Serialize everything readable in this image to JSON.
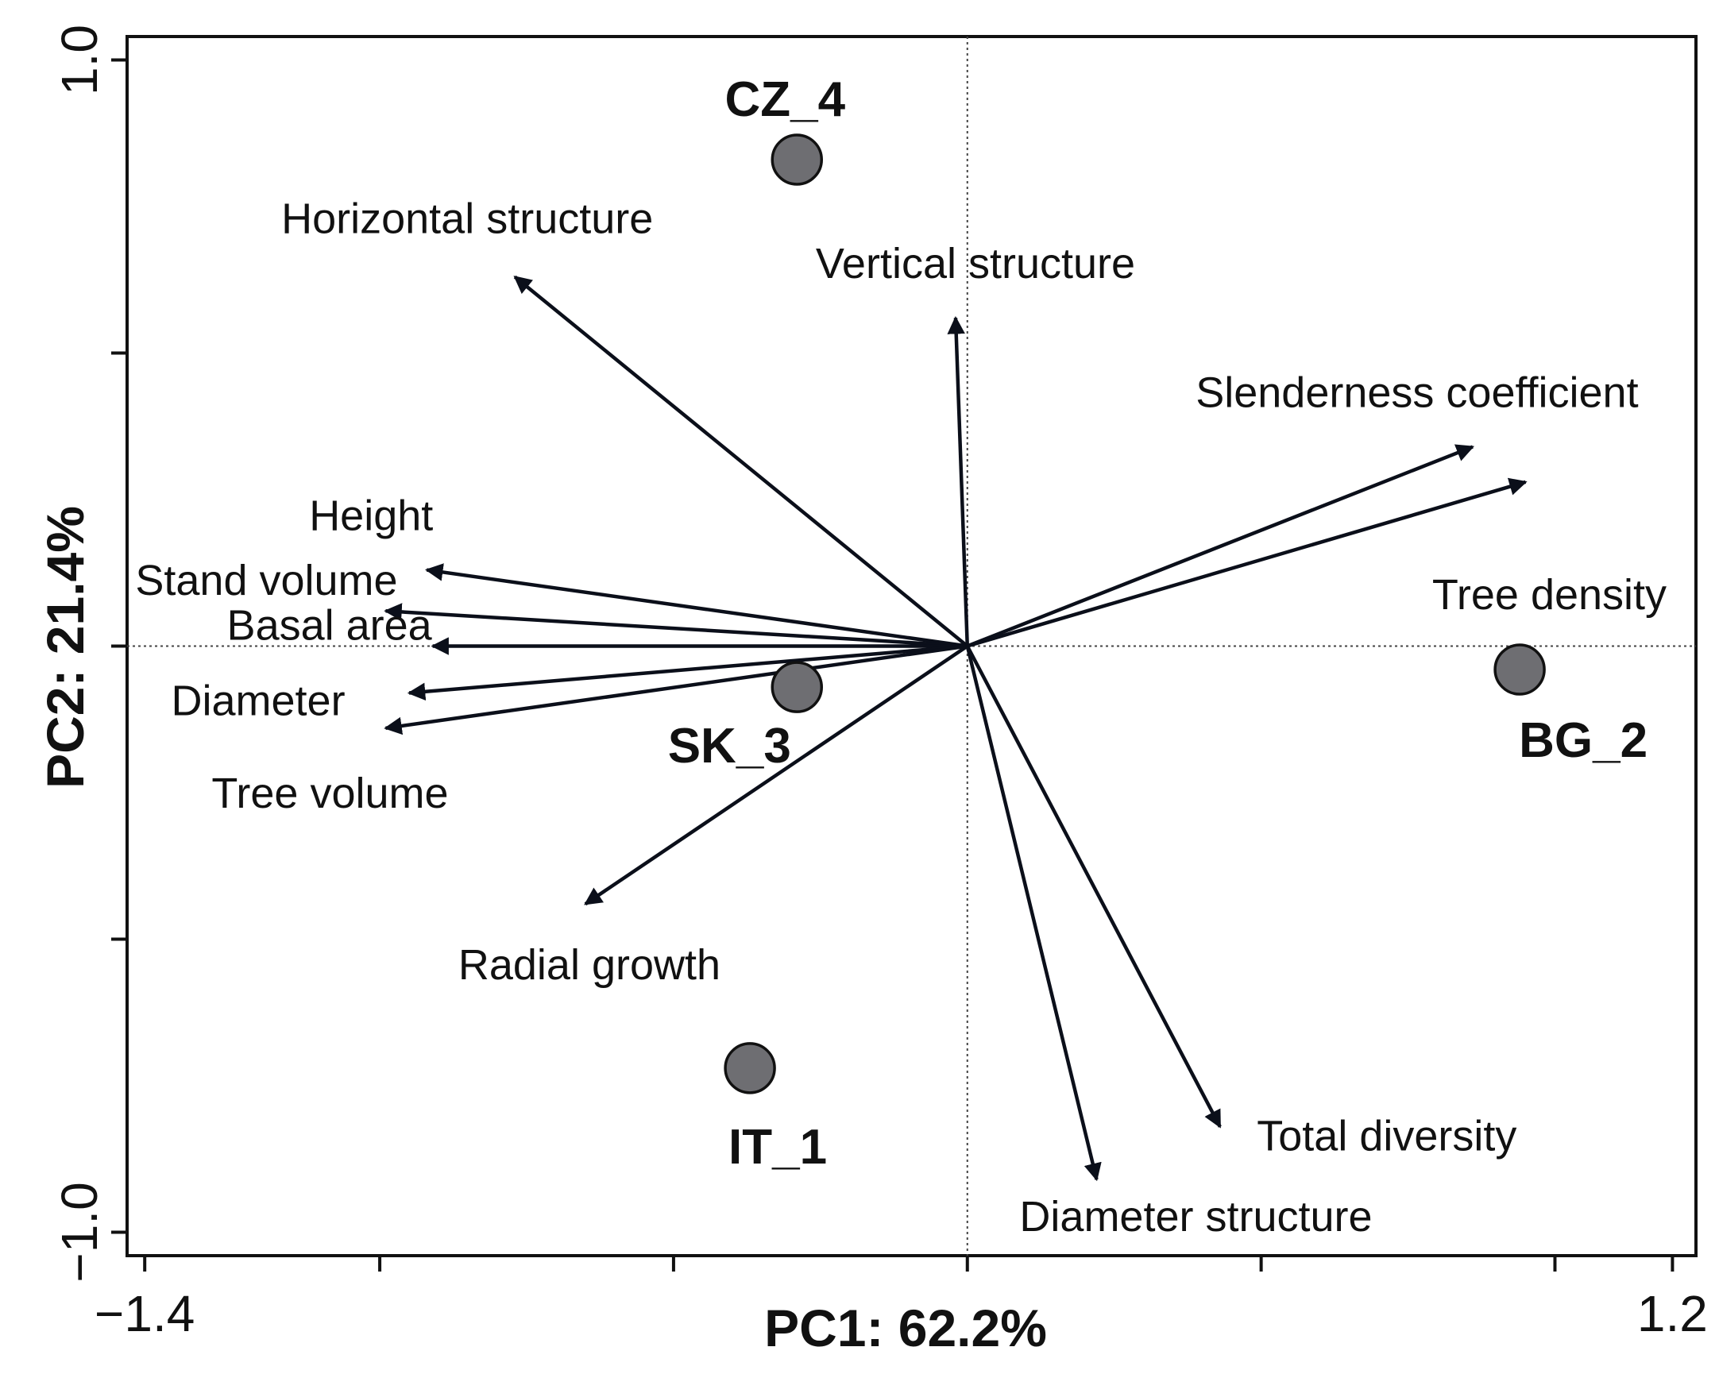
{
  "chart_data": {
    "type": "scatter",
    "subtype": "pca-biplot",
    "xlabel": "PC1: 62.2%",
    "ylabel": "PC2: 21.4%",
    "xlim": [
      -1.43,
      1.24
    ],
    "ylim": [
      -1.04,
      1.04
    ],
    "x_ticks": [
      -1.4,
      -1.0,
      -0.5,
      0.0,
      0.5,
      1.0,
      1.2
    ],
    "x_tick_labels": [
      "−1.4",
      "",
      "",
      "",
      "",
      "",
      "1.2"
    ],
    "y_ticks": [
      -1.0,
      -0.5,
      0.0,
      0.5,
      1.0
    ],
    "y_tick_labels": [
      "−1.0",
      "",
      "",
      "",
      "1.0"
    ],
    "reference_lines": {
      "x": 0,
      "y": 0,
      "style": "dotted"
    },
    "sites": [
      {
        "name": "CZ_4",
        "x": -0.29,
        "y": 0.83
      },
      {
        "name": "SK_3",
        "x": -0.29,
        "y": -0.07
      },
      {
        "name": "IT_1",
        "x": -0.37,
        "y": -0.72
      },
      {
        "name": "BG_2",
        "x": 0.94,
        "y": -0.04
      }
    ],
    "variables": [
      {
        "name": "Horizontal structure",
        "x": -0.77,
        "y": 0.63
      },
      {
        "name": "Vertical structure",
        "x": -0.02,
        "y": 0.56
      },
      {
        "name": "Slenderness coefficient",
        "x": 0.86,
        "y": 0.34
      },
      {
        "name": "Tree density",
        "x": 0.95,
        "y": 0.28
      },
      {
        "name": "Height",
        "x": -0.92,
        "y": 0.13
      },
      {
        "name": "Stand volume",
        "x": -0.99,
        "y": 0.06
      },
      {
        "name": "Basal area",
        "x": -0.91,
        "y": 0.0
      },
      {
        "name": "Diameter",
        "x": -0.95,
        "y": -0.08
      },
      {
        "name": "Tree volume",
        "x": -0.99,
        "y": -0.14
      },
      {
        "name": "Radial growth",
        "x": -0.65,
        "y": -0.44
      },
      {
        "name": "Total diversity",
        "x": 0.43,
        "y": -0.82
      },
      {
        "name": "Diameter structure",
        "x": 0.22,
        "y": -0.91
      }
    ]
  }
}
